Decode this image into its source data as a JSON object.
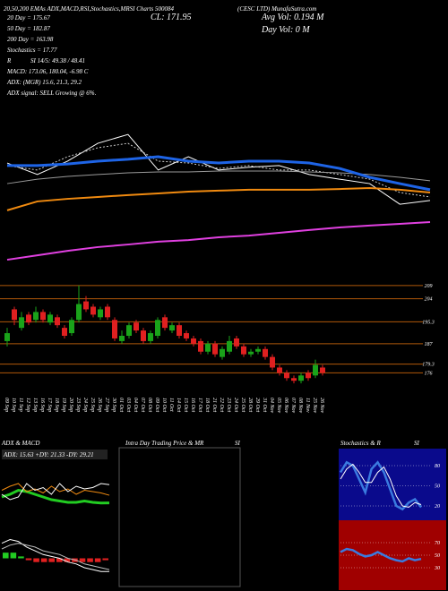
{
  "header": {
    "title": "20,50,200 EMAs ADX,MACD,RSI,Stochastics,MRSI Charts 500084",
    "company": "(CESC LTD) MunafaSutra.com",
    "close": "CL: 171.95",
    "avg_vol": "Avg Vol: 0.194 M",
    "day_vol": "Day Vol: 0 M"
  },
  "stats": [
    "20 Day = 175.67",
    "50 Day = 182.87",
    "200 Day = 163.98",
    "Stochastics = 17.77",
    "R",
    "SI 14/5: 49.38 / 48.41",
    "MACD: 173.06, 180.04, -6.98 C",
    "ADX: (MGR) 15.6, 21.3, 29.2",
    "ADX signal: SELL Growing @ 6%."
  ],
  "intraday": {
    "title": "Intra Day Trading Price & MR",
    "subtitle": "SI"
  },
  "chart_data": [
    {
      "type": "line",
      "ylim": [
        150,
        215
      ],
      "series": [
        {
          "color": "#ffffff",
          "values": [
            195.1,
            190.2,
            195.9,
            203.5,
            207.3,
            192.1,
            197.8,
            192.1,
            193.3,
            194.0,
            190.2,
            188.2,
            186.3,
            177.5,
            179.1
          ]
        },
        {
          "color": "#cccccc",
          "dash": true,
          "values": [
            194.0,
            192.1,
            197.8,
            201.6,
            203.5,
            195.9,
            195.1,
            192.8,
            194.0,
            192.1,
            192.1,
            190.2,
            188.2,
            182.5,
            180.6
          ]
        },
        {
          "color": "#9a9a9a",
          "values": [
            186.3,
            188.2,
            189.4,
            190.2,
            190.9,
            191.3,
            191.3,
            191.7,
            191.7,
            191.7,
            191.3,
            190.9,
            190.2,
            189.0,
            187.5
          ]
        },
        {
          "color": "#1e64e6",
          "width": 3,
          "values": [
            194.0,
            194.0,
            194.7,
            195.9,
            196.7,
            197.8,
            195.9,
            195.1,
            195.9,
            195.9,
            195.1,
            192.8,
            189.0,
            186.3,
            183.7
          ]
        },
        {
          "color": "#f08a10",
          "width": 2,
          "values": [
            174.9,
            178.7,
            179.8,
            180.6,
            181.4,
            182.1,
            182.9,
            183.3,
            183.7,
            183.7,
            183.7,
            184.0,
            184.4,
            183.7,
            182.5
          ]
        },
        {
          "color": "#e040e0",
          "width": 2,
          "values": [
            153.8,
            155.7,
            157.6,
            159.2,
            160.3,
            161.5,
            162.2,
            163.4,
            164.1,
            165.3,
            166.5,
            167.6,
            168.4,
            169.1,
            169.9
          ]
        }
      ]
    },
    {
      "type": "candlestick",
      "ylim": [
        168,
        212
      ],
      "yticks": [
        176,
        179.3,
        187,
        195.3,
        204,
        209
      ],
      "grid": true,
      "grid_color": "#b0580a",
      "up_color": "#1aa31a",
      "down_color": "#e02020",
      "categories": [
        "09 Sep",
        "10 Sep",
        "11 Sep",
        "12 Sep",
        "13 Sep",
        "16 Sep",
        "17 Sep",
        "18 Sep",
        "19 Sep",
        "20 Sep",
        "23 Sep",
        "24 Sep",
        "25 Sep",
        "26 Sep",
        "27 Sep",
        "30 Sep",
        "01 Oct",
        "03 Oct",
        "04 Oct",
        "07 Oct",
        "08 Oct",
        "09 Oct",
        "10 Oct",
        "11 Oct",
        "14 Oct",
        "15 Oct",
        "16 Oct",
        "17 Oct",
        "18 Oct",
        "21 Oct",
        "22 Oct",
        "23 Oct",
        "24 Oct",
        "25 Oct",
        "28 Oct",
        "29 Oct",
        "31 Oct",
        "04 Nov",
        "05 Nov",
        "06 Nov",
        "07 Nov",
        "08 Nov",
        "11 Nov",
        "25 Nov",
        "26 Nov"
      ],
      "open": [
        188,
        200,
        193,
        198,
        196,
        199,
        195,
        197,
        193,
        191,
        196,
        203,
        201,
        197,
        201,
        196,
        188,
        190,
        195,
        192,
        188,
        190,
        197,
        192,
        194,
        191,
        189,
        188,
        184,
        187,
        182,
        184,
        189,
        186,
        183,
        184,
        185,
        182,
        178,
        176,
        174,
        173,
        176,
        175,
        178
      ],
      "high": [
        193,
        201,
        199,
        199,
        201,
        200,
        199,
        198,
        194,
        197,
        209,
        205,
        202,
        201,
        202,
        197,
        192,
        195,
        196,
        193,
        192,
        197,
        198,
        195,
        195,
        192,
        190,
        189,
        188,
        188,
        186,
        190,
        190,
        187,
        185,
        186,
        186,
        183,
        179,
        177,
        175,
        176,
        177,
        181,
        179
      ],
      "low": [
        186,
        194,
        192,
        194,
        195,
        195,
        194,
        193,
        189,
        190,
        195,
        199,
        197,
        196,
        196,
        188,
        187,
        189,
        191,
        187,
        187,
        189,
        192,
        191,
        189,
        188,
        186,
        183,
        183,
        182,
        181,
        183,
        185,
        182,
        182,
        183,
        181,
        177,
        175,
        173,
        172,
        172,
        173,
        174,
        175
      ],
      "close": [
        191,
        196,
        197,
        195,
        199,
        196,
        198,
        194,
        190,
        196,
        202,
        200,
        198,
        200,
        197,
        189,
        190,
        194,
        192,
        188,
        191,
        196,
        193,
        194,
        190,
        189,
        187,
        184,
        187,
        183,
        185,
        188,
        186,
        183,
        184,
        185,
        182,
        178,
        176,
        174,
        173,
        175,
        174,
        179,
        176
      ]
    },
    {
      "type": "line",
      "title": "ADX & MACD",
      "annotation": "ADX: 15.63 +DY: 21.33 -DY: 29.21",
      "ylim": [
        0,
        50
      ],
      "series": [
        {
          "color": "#22cc22",
          "width": 3,
          "values": [
            20,
            22,
            25,
            24,
            22,
            20,
            18,
            17,
            16,
            16,
            17,
            16,
            15.5,
            15.6
          ]
        },
        {
          "color": "#f08a10",
          "values": [
            25,
            28,
            30,
            24,
            26,
            23,
            28,
            24,
            26,
            22,
            25,
            24,
            23,
            21.3
          ]
        },
        {
          "color": "#ffffff",
          "values": [
            22,
            18,
            20,
            30,
            25,
            27,
            22,
            30,
            24,
            28,
            26,
            27,
            30,
            29.2
          ]
        }
      ]
    },
    {
      "type": "bar",
      "ylim": [
        -15,
        15
      ],
      "pos_color": "#22cc22",
      "neg_color": "#e02020",
      "values": [
        3,
        3,
        1,
        -1,
        -2,
        -2,
        -2,
        -2,
        -2,
        -2,
        -2,
        -2,
        -2,
        -1
      ],
      "series": [
        {
          "color": "#ffffff",
          "values": [
            8,
            10,
            9,
            6,
            4,
            2,
            1,
            0,
            -2,
            -3,
            -5,
            -6,
            -7,
            -7
          ]
        },
        {
          "color": "#bbbbbb",
          "values": [
            5,
            7,
            8,
            7,
            6,
            4,
            3,
            2,
            0,
            -1,
            -3,
            -4,
            -5,
            -6
          ]
        }
      ]
    },
    {
      "type": "line",
      "title": "Stochastics & R",
      "subtitle": "SI",
      "ylim": [
        0,
        100
      ],
      "yticks": [
        20,
        50,
        80
      ],
      "background": "#0a0a8c",
      "series": [
        {
          "color": "#3a7be0",
          "width": 2.5,
          "values": [
            70,
            85,
            80,
            60,
            40,
            75,
            85,
            70,
            45,
            20,
            15,
            25,
            30,
            18
          ]
        },
        {
          "color": "#ffffff",
          "values": [
            60,
            75,
            82,
            70,
            55,
            55,
            70,
            78,
            60,
            35,
            20,
            18,
            25,
            22
          ]
        }
      ]
    },
    {
      "type": "line",
      "ylim": [
        0,
        100
      ],
      "yticks": [
        30,
        50,
        70
      ],
      "background": "#a00000",
      "series": [
        {
          "color": "#3a7be0",
          "width": 2.5,
          "values": [
            55,
            60,
            58,
            52,
            48,
            50,
            55,
            50,
            45,
            42,
            40,
            45,
            42,
            44
          ]
        }
      ]
    }
  ]
}
